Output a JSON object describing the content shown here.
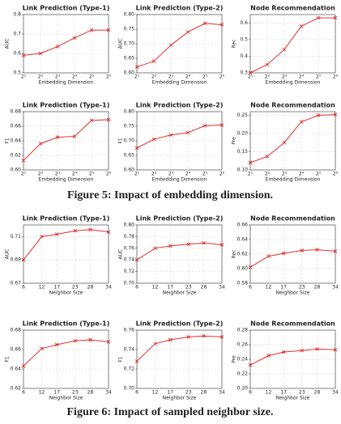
{
  "captions": [
    "Figure 5: Impact of embedding dimension.",
    "Figure 6: Impact of sampled neighbor size."
  ],
  "chart_data": [
    {
      "type": "line",
      "title": "Link Prediction (Type-1)",
      "xlabel": "Embedding Dimension",
      "ylabel": "AUC",
      "categories": [
        "2¹",
        "2²",
        "2³",
        "2⁴",
        "2⁵",
        "2⁶"
      ],
      "values": [
        0.59,
        0.6,
        0.635,
        0.68,
        0.72,
        0.72
      ],
      "color": "#e0312f",
      "ylim": [
        0.5,
        0.8
      ],
      "yticks": [
        0.5,
        0.6,
        0.7,
        0.8
      ],
      "grid": true
    },
    {
      "type": "line",
      "title": "Link Prediction (Type-2)",
      "xlabel": "Embedding Dimension",
      "ylabel": "AUC",
      "categories": [
        "2¹",
        "2²",
        "2³",
        "2⁴",
        "2⁵",
        "2⁶"
      ],
      "values": [
        0.62,
        0.64,
        0.695,
        0.74,
        0.77,
        0.765
      ],
      "color": "#e0312f",
      "ylim": [
        0.6,
        0.8
      ],
      "yticks": [
        {
          "value": 0.6,
          "label": "0.60"
        },
        0.65,
        {
          "value": 0.7,
          "label": "0.70"
        },
        0.75,
        {
          "value": 0.8,
          "label": "0.80"
        }
      ],
      "grid": true
    },
    {
      "type": "line",
      "title": "Node Recommendation",
      "xlabel": "Embedding Dimension",
      "ylabel": "Rec",
      "categories": [
        "2¹",
        "2²",
        "2³",
        "2⁴",
        "2⁵",
        "2⁶"
      ],
      "values": [
        0.3,
        0.35,
        0.44,
        0.58,
        0.63,
        0.63
      ],
      "color": "#e0312f",
      "ylim": [
        0.3,
        0.65
      ],
      "yticks": [
        0.3,
        0.4,
        0.5,
        0.6
      ],
      "grid": true
    },
    {
      "type": "line",
      "title": "Link Prediction (Type-1)",
      "xlabel": "Embedding Dimension",
      "ylabel": "F1",
      "categories": [
        "2¹",
        "2²",
        "2³",
        "2⁴",
        "2⁵",
        "2⁶"
      ],
      "values": [
        0.613,
        0.636,
        0.645,
        0.646,
        0.668,
        0.669
      ],
      "color": "#e0312f",
      "ylim": [
        0.6,
        0.68
      ],
      "yticks": [
        {
          "value": 0.6,
          "label": "0.60"
        },
        0.62,
        0.64,
        0.66,
        0.68
      ],
      "grid": true
    },
    {
      "type": "line",
      "title": "Link Prediction (Type-2)",
      "xlabel": "Embedding Dimension",
      "ylabel": "F1",
      "categories": [
        "2¹",
        "2²",
        "2³",
        "2⁴",
        "2⁵",
        "2⁶"
      ],
      "values": [
        0.675,
        0.705,
        0.72,
        0.728,
        0.752,
        0.754
      ],
      "color": "#e0312f",
      "ylim": [
        0.6,
        0.8
      ],
      "yticks": [
        {
          "value": 0.6,
          "label": "0.60"
        },
        0.65,
        {
          "value": 0.7,
          "label": "0.70"
        },
        0.75,
        {
          "value": 0.8,
          "label": "0.80"
        }
      ],
      "grid": true
    },
    {
      "type": "line",
      "title": "Node Recommendation",
      "xlabel": "Embedding Dimension",
      "ylabel": "Pre",
      "categories": [
        "2¹",
        "2²",
        "2³",
        "2⁴",
        "2⁵",
        "2⁶"
      ],
      "values": [
        0.12,
        0.137,
        0.175,
        0.232,
        0.25,
        0.252
      ],
      "color": "#e0312f",
      "ylim": [
        0.1,
        0.26
      ],
      "yticks": [
        {
          "value": 0.1,
          "label": "0.10"
        },
        0.15,
        {
          "value": 0.2,
          "label": "0.20"
        },
        0.25
      ],
      "grid": true
    },
    {
      "type": "line",
      "title": "Link Prediction (Type-1)",
      "xlabel": "Neighbor Size",
      "ylabel": "AUC",
      "x": [
        6,
        12,
        17,
        23,
        28,
        34
      ],
      "xlim": [
        6,
        34
      ],
      "xticks": [
        6,
        12,
        17,
        23,
        28,
        34
      ],
      "values": [
        0.69,
        0.71,
        0.712,
        0.715,
        0.716,
        0.714
      ],
      "color": "#e0312f",
      "ylim": [
        0.67,
        0.72
      ],
      "yticks": [
        0.67,
        0.69,
        0.71
      ],
      "grid": true
    },
    {
      "type": "line",
      "title": "Link Prediction (Type-2)",
      "xlabel": "Neighbor Size",
      "ylabel": "AUC",
      "x": [
        6,
        12,
        17,
        23,
        28,
        34
      ],
      "xlim": [
        6,
        34
      ],
      "xticks": [
        6,
        12,
        17,
        23,
        28,
        34
      ],
      "values": [
        0.74,
        0.76,
        0.764,
        0.767,
        0.769,
        0.766
      ],
      "color": "#e0312f",
      "ylim": [
        0.7,
        0.8
      ],
      "yticks": [
        {
          "value": 0.7,
          "label": "0.70"
        },
        0.72,
        0.74,
        0.76,
        0.78,
        {
          "value": 0.8,
          "label": "0.80"
        }
      ],
      "grid": true
    },
    {
      "type": "line",
      "title": "Node Recommendation",
      "xlabel": "Neighbor Size",
      "ylabel": "Rec",
      "x": [
        6,
        12,
        17,
        23,
        28,
        34
      ],
      "xlim": [
        6,
        34
      ],
      "xticks": [
        6,
        12,
        17,
        23,
        28,
        34
      ],
      "values": [
        0.602,
        0.617,
        0.621,
        0.625,
        0.626,
        0.624
      ],
      "color": "#e0312f",
      "ylim": [
        0.58,
        0.66
      ],
      "yticks": [
        0.58,
        {
          "value": 0.6,
          "label": "0.60"
        },
        0.62,
        0.64,
        0.66
      ],
      "grid": true
    },
    {
      "type": "line",
      "title": "Link Prediction (Type-1)",
      "xlabel": "Neighbor Size",
      "ylabel": "F1",
      "x": [
        6,
        12,
        17,
        23,
        28,
        34
      ],
      "xlim": [
        6,
        34
      ],
      "xticks": [
        6,
        12,
        17,
        23,
        28,
        34
      ],
      "values": [
        0.643,
        0.661,
        0.665,
        0.669,
        0.67,
        0.668
      ],
      "color": "#e0312f",
      "ylim": [
        0.62,
        0.68
      ],
      "yticks": [
        0.62,
        0.64,
        0.66,
        0.68
      ],
      "grid": true
    },
    {
      "type": "line",
      "title": "Link Prediction (Type-2)",
      "xlabel": "Neighbor Size",
      "ylabel": "F1",
      "x": [
        6,
        12,
        17,
        23,
        28,
        34
      ],
      "xlim": [
        6,
        34
      ],
      "xticks": [
        6,
        12,
        17,
        23,
        28,
        34
      ],
      "values": [
        0.728,
        0.746,
        0.75,
        0.753,
        0.754,
        0.753
      ],
      "color": "#e0312f",
      "ylim": [
        0.7,
        0.76
      ],
      "yticks": [
        {
          "value": 0.7,
          "label": "0.70"
        },
        0.72,
        0.74,
        0.76
      ],
      "grid": true
    },
    {
      "type": "line",
      "title": "Node Recommendation",
      "xlabel": "Neighbor Size",
      "ylabel": "Pre",
      "x": [
        6,
        12,
        17,
        23,
        28,
        34
      ],
      "xlim": [
        6,
        34
      ],
      "xticks": [
        6,
        12,
        17,
        23,
        28,
        34
      ],
      "values": [
        0.232,
        0.245,
        0.25,
        0.252,
        0.254,
        0.253
      ],
      "color": "#e0312f",
      "ylim": [
        0.2,
        0.28
      ],
      "yticks": [
        {
          "value": 0.2,
          "label": "0.20"
        },
        0.22,
        0.24,
        0.26,
        0.28
      ],
      "grid": true
    }
  ]
}
